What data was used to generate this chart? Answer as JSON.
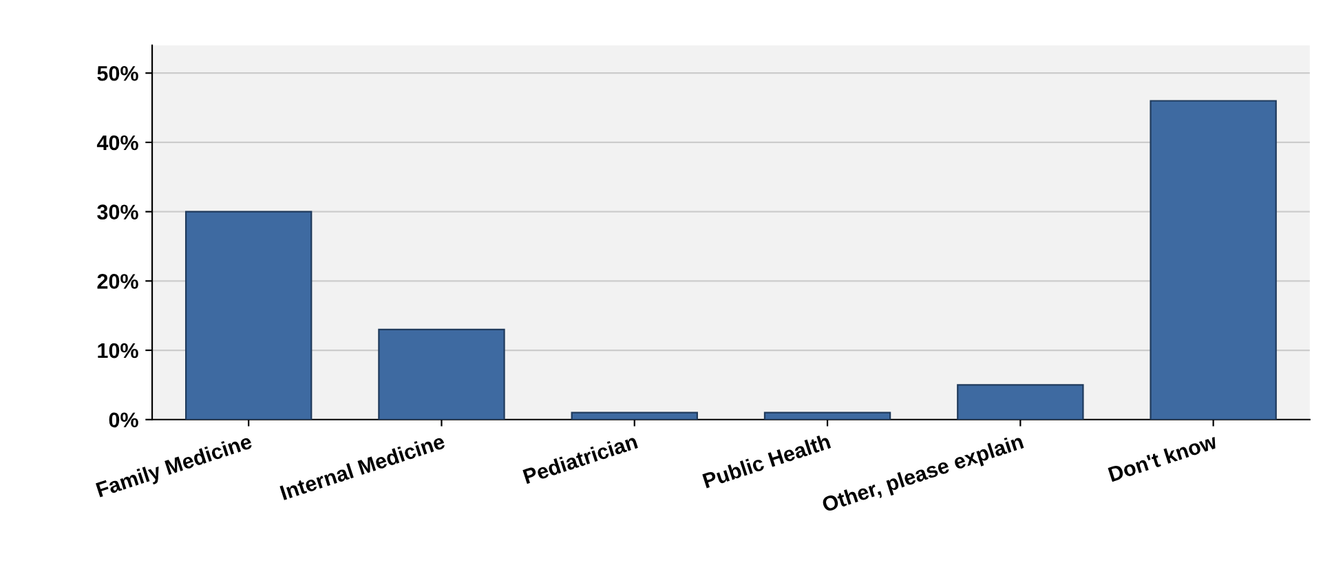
{
  "chart_data": {
    "type": "bar",
    "categories": [
      "Family Medicine",
      "Internal Medicine",
      "Pediatrician",
      "Public Health",
      "Other, please explain",
      "Don't know"
    ],
    "values": [
      30,
      13,
      1,
      1,
      5,
      46
    ],
    "color": "#3e6aa1",
    "ylim": [
      0,
      54
    ],
    "yticks": [
      {
        "value": 0,
        "label": "0%"
      },
      {
        "value": 10,
        "label": "10%"
      },
      {
        "value": 20,
        "label": "20%"
      },
      {
        "value": 30,
        "label": "30%"
      },
      {
        "value": 40,
        "label": "40%"
      },
      {
        "value": 50,
        "label": "50%"
      }
    ],
    "grid": "y"
  }
}
